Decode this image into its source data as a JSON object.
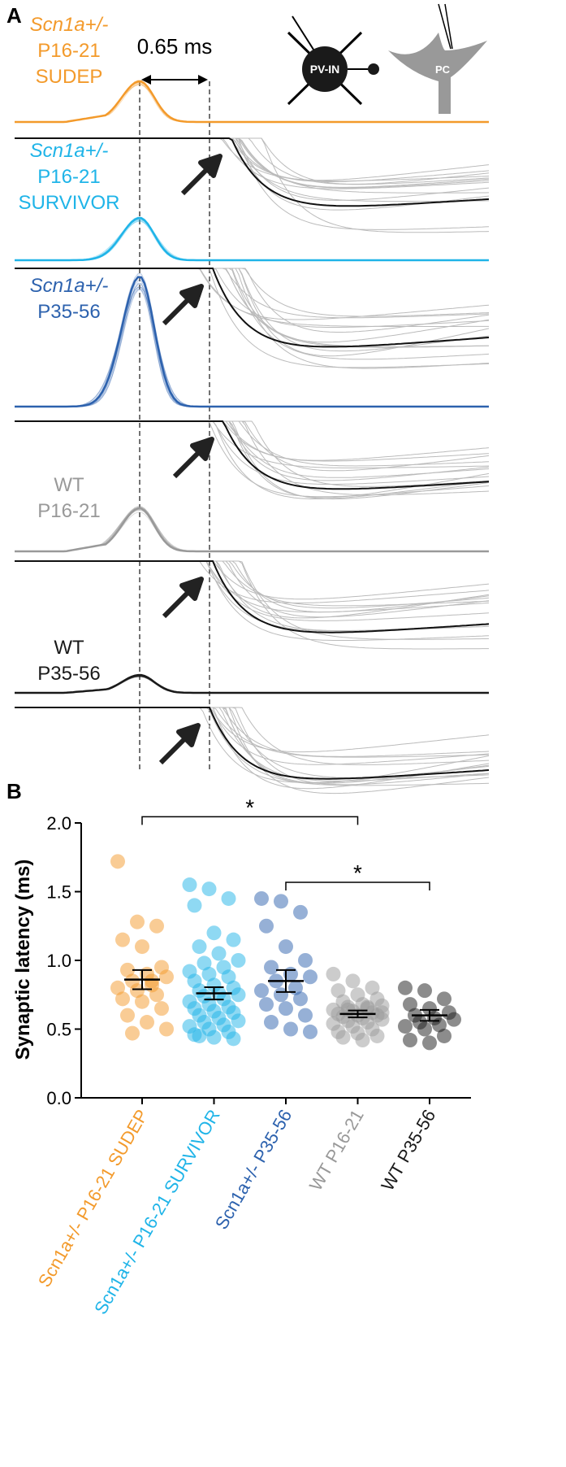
{
  "panel_a": {
    "label": "A",
    "scale_label": "0.65 ms",
    "cell_labels": [
      "PV-IN",
      "PC"
    ],
    "groups": [
      {
        "lines": [
          "Scn1a+/-",
          "P16-21",
          "SUDEP"
        ],
        "color": "#f39a2b"
      },
      {
        "lines": [
          "Scn1a+/-",
          "P16-21",
          "SURVIVOR"
        ],
        "color": "#1fb4e8"
      },
      {
        "lines": [
          "Scn1a+/-",
          "P35-56"
        ],
        "color": "#2d62ae"
      },
      {
        "lines": [
          "WT",
          "P16-21"
        ],
        "color": "#999999"
      },
      {
        "lines": [
          "WT",
          "P35-56"
        ],
        "color": "#1a1a1a"
      }
    ]
  },
  "chart_data": {
    "type": "strip",
    "panel_label": "B",
    "ylabel": "Synaptic latency (ms)",
    "categories": [
      "Scn1a+/- P16-21 SUDEP",
      "Scn1a+/- P16-21 SURVIVOR",
      "Scn1a+/- P35-56",
      "WT P16-21",
      "WT P35-56"
    ],
    "colors": [
      "#f39a2b",
      "#1fb4e8",
      "#2d62ae",
      "#999999",
      "#1a1a1a"
    ],
    "points": [
      [
        1.72,
        1.28,
        1.25,
        1.15,
        1.1,
        0.95,
        0.93,
        0.9,
        0.88,
        0.85,
        0.82,
        0.8,
        0.78,
        0.75,
        0.72,
        0.7,
        0.65,
        0.6,
        0.55,
        0.5,
        0.47,
        0.85
      ],
      [
        1.55,
        1.52,
        1.45,
        1.4,
        1.2,
        1.15,
        1.1,
        1.05,
        1.0,
        0.98,
        0.95,
        0.92,
        0.9,
        0.88,
        0.85,
        0.82,
        0.8,
        0.78,
        0.76,
        0.75,
        0.74,
        0.72,
        0.7,
        0.68,
        0.66,
        0.65,
        0.63,
        0.62,
        0.6,
        0.58,
        0.56,
        0.55,
        0.53,
        0.52,
        0.5,
        0.48,
        0.46,
        0.44,
        0.43,
        0.45
      ],
      [
        1.45,
        1.43,
        1.35,
        1.25,
        1.1,
        1.0,
        0.95,
        0.9,
        0.88,
        0.85,
        0.8,
        0.78,
        0.75,
        0.72,
        0.68,
        0.65,
        0.6,
        0.55,
        0.5,
        0.48
      ],
      [
        0.9,
        0.85,
        0.8,
        0.78,
        0.75,
        0.72,
        0.7,
        0.68,
        0.67,
        0.66,
        0.65,
        0.64,
        0.63,
        0.62,
        0.61,
        0.6,
        0.6,
        0.59,
        0.58,
        0.57,
        0.56,
        0.55,
        0.54,
        0.52,
        0.5,
        0.48,
        0.47,
        0.45,
        0.44,
        0.42,
        0.62,
        0.64,
        0.66
      ],
      [
        0.8,
        0.78,
        0.72,
        0.68,
        0.65,
        0.62,
        0.6,
        0.58,
        0.57,
        0.55,
        0.53,
        0.52,
        0.5,
        0.45,
        0.42,
        0.4
      ]
    ],
    "means": [
      0.86,
      0.76,
      0.85,
      0.61,
      0.6
    ],
    "sems": [
      0.07,
      0.045,
      0.08,
      0.025,
      0.04
    ],
    "ylim": [
      0,
      2
    ],
    "yticks": [
      {
        "value": 0,
        "label": "0.0"
      },
      {
        "value": 0.5,
        "label": "0.5"
      },
      {
        "value": 1,
        "label": "1.0"
      },
      {
        "value": 1.5,
        "label": "1.5"
      },
      {
        "value": 2,
        "label": "2.0"
      }
    ],
    "significance": [
      {
        "from": 0,
        "to": 3,
        "label": "*"
      },
      {
        "from": 2,
        "to": 4,
        "label": "*"
      }
    ]
  }
}
